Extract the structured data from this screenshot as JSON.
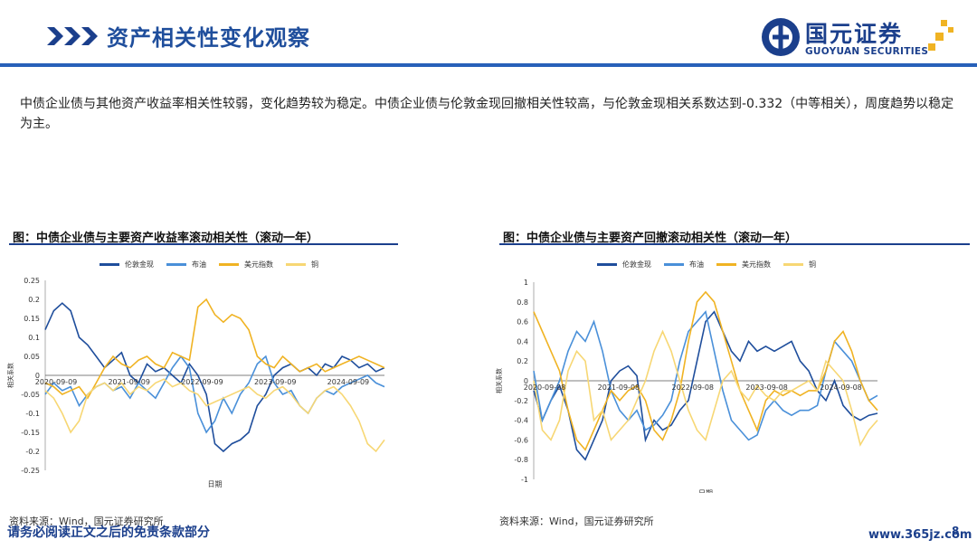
{
  "header": {
    "title": "资产相关性变化观察",
    "logo_cn": "国元证券",
    "logo_en": "GUOYUAN SECURITIES",
    "brand_color": "#1b3f8c"
  },
  "body_text": "中债企业债与其他资产收益率相关性较弱，变化趋势较为稳定。中债企业债与伦敦金现回撤相关性较高，与伦敦金现相关系数达到-0.332（中等相关），周度趋势以稳定为主。",
  "chart_data": [
    {
      "type": "line",
      "panel_title": "图：中债企业债与主要资产收益率滚动相关性（滚动一年）",
      "source": "资料来源：Wind，国元证券研究所",
      "xlabel": "日期",
      "ylabel": "相关系数",
      "ylim": [
        -0.25,
        0.25
      ],
      "yticks": [
        "0.25",
        "0.2",
        "0.15",
        "0.1",
        "0.05",
        "0",
        "-0.05",
        "-0.1",
        "-0.15",
        "-0.2",
        "-0.25"
      ],
      "xticks": [
        "2020-09-09",
        "2021-09-09",
        "2022-09-09",
        "2023-09-09",
        "2024-09-09"
      ],
      "series": [
        {
          "name": "伦敦金现",
          "color": "#1f4e9c",
          "values": [
            0.12,
            0.17,
            0.19,
            0.17,
            0.1,
            0.08,
            0.05,
            0.02,
            0.04,
            0.06,
            0.0,
            -0.02,
            0.03,
            0.01,
            0.02,
            0.0,
            -0.02,
            0.03,
            0.0,
            -0.05,
            -0.18,
            -0.2,
            -0.18,
            -0.17,
            -0.15,
            -0.08,
            -0.05,
            0.0,
            0.02,
            0.03,
            0.01,
            0.02,
            0.0,
            0.03,
            0.02,
            0.05,
            0.04,
            0.02,
            0.03,
            0.01,
            0.02
          ]
        },
        {
          "name": "布油",
          "color": "#4a90d9",
          "values": [
            -0.05,
            -0.02,
            -0.04,
            -0.03,
            -0.08,
            -0.05,
            -0.03,
            -0.02,
            -0.04,
            -0.03,
            -0.06,
            -0.02,
            -0.04,
            -0.06,
            -0.02,
            0.02,
            0.05,
            0.02,
            -0.1,
            -0.15,
            -0.12,
            -0.06,
            -0.1,
            -0.05,
            -0.02,
            0.03,
            0.05,
            -0.02,
            -0.05,
            -0.04,
            -0.08,
            -0.1,
            -0.06,
            -0.04,
            -0.05,
            -0.03,
            -0.02,
            -0.01,
            0.0,
            -0.02,
            -0.03
          ]
        },
        {
          "name": "美元指数",
          "color": "#f0b323",
          "values": [
            -0.02,
            -0.03,
            -0.05,
            -0.04,
            -0.03,
            -0.06,
            -0.02,
            0.02,
            0.05,
            0.03,
            0.02,
            0.04,
            0.05,
            0.03,
            0.02,
            0.06,
            0.05,
            0.04,
            0.18,
            0.2,
            0.16,
            0.14,
            0.16,
            0.15,
            0.12,
            0.05,
            0.03,
            0.02,
            0.05,
            0.03,
            0.01,
            0.02,
            0.03,
            0.01,
            0.02,
            0.03,
            0.04,
            0.05,
            0.04,
            0.03,
            0.02
          ]
        },
        {
          "name": "铜",
          "color": "#f7d774",
          "values": [
            -0.04,
            -0.06,
            -0.1,
            -0.15,
            -0.12,
            -0.05,
            -0.03,
            -0.02,
            -0.04,
            -0.02,
            -0.05,
            -0.03,
            -0.04,
            -0.02,
            -0.01,
            -0.03,
            -0.02,
            -0.04,
            -0.05,
            -0.08,
            -0.07,
            -0.06,
            -0.05,
            -0.04,
            -0.03,
            -0.05,
            -0.06,
            -0.04,
            -0.03,
            -0.05,
            -0.08,
            -0.1,
            -0.06,
            -0.04,
            -0.03,
            -0.05,
            -0.08,
            -0.12,
            -0.18,
            -0.2,
            -0.17
          ]
        }
      ]
    },
    {
      "type": "line",
      "panel_title": "图：中债企业债与主要资产回撤滚动相关性（滚动一年）",
      "source": "资料来源：Wind，国元证券研究所",
      "xlabel": "日期",
      "ylabel": "相关系数",
      "ylim": [
        -1,
        1
      ],
      "yticks": [
        "1",
        "0.8",
        "0.6",
        "0.4",
        "0.2",
        "0",
        "-0.2",
        "-0.4",
        "-0.6",
        "-0.8",
        "-1"
      ],
      "xticks": [
        "2020-09-08",
        "2021-09-08",
        "2022-09-08",
        "2023-09-08",
        "2024-09-08"
      ],
      "series": [
        {
          "name": "伦敦金现",
          "color": "#1f4e9c",
          "values": [
            -0.1,
            -0.4,
            -0.2,
            -0.05,
            -0.3,
            -0.7,
            -0.8,
            -0.6,
            -0.4,
            0.0,
            0.1,
            0.15,
            0.05,
            -0.6,
            -0.4,
            -0.5,
            -0.45,
            -0.3,
            -0.2,
            0.2,
            0.6,
            0.7,
            0.5,
            0.3,
            0.2,
            0.4,
            0.3,
            0.35,
            0.3,
            0.35,
            0.4,
            0.2,
            0.1,
            -0.1,
            -0.2,
            0.0,
            -0.25,
            -0.35,
            -0.4,
            -0.35,
            -0.33
          ]
        },
        {
          "name": "布油",
          "color": "#4a90d9",
          "values": [
            0.1,
            -0.4,
            -0.2,
            0.0,
            0.3,
            0.5,
            0.4,
            0.6,
            0.3,
            -0.1,
            -0.3,
            -0.4,
            -0.3,
            -0.5,
            -0.45,
            -0.35,
            -0.2,
            0.2,
            0.5,
            0.6,
            0.7,
            0.3,
            -0.1,
            -0.4,
            -0.5,
            -0.6,
            -0.55,
            -0.3,
            -0.2,
            -0.3,
            -0.35,
            -0.3,
            -0.3,
            -0.25,
            0.1,
            0.4,
            0.3,
            0.2,
            0.0,
            -0.2,
            -0.15
          ]
        },
        {
          "name": "美元指数",
          "color": "#f0b323",
          "values": [
            0.7,
            0.5,
            0.3,
            0.1,
            -0.3,
            -0.6,
            -0.7,
            -0.5,
            -0.3,
            -0.1,
            -0.2,
            -0.1,
            -0.05,
            -0.2,
            -0.5,
            -0.6,
            -0.4,
            -0.1,
            0.4,
            0.8,
            0.9,
            0.8,
            0.5,
            0.2,
            -0.1,
            -0.3,
            -0.5,
            -0.2,
            -0.1,
            -0.15,
            -0.1,
            -0.15,
            -0.1,
            -0.1,
            0.1,
            0.4,
            0.5,
            0.3,
            0.0,
            -0.2,
            -0.3
          ]
        },
        {
          "name": "铜",
          "color": "#f7d774",
          "values": [
            0.0,
            -0.5,
            -0.6,
            -0.4,
            0.1,
            0.3,
            0.2,
            -0.4,
            -0.3,
            -0.6,
            -0.5,
            -0.4,
            -0.2,
            0.0,
            0.3,
            0.5,
            0.3,
            0.0,
            -0.3,
            -0.5,
            -0.6,
            -0.3,
            0.0,
            0.1,
            -0.1,
            -0.2,
            -0.05,
            -0.15,
            -0.2,
            -0.1,
            -0.1,
            -0.05,
            0.0,
            -0.1,
            0.2,
            0.1,
            0.0,
            -0.3,
            -0.65,
            -0.5,
            -0.4
          ]
        }
      ]
    }
  ],
  "footer": {
    "disclaimer": "请务必阅读正文之后的免责条款部分",
    "watermark": "www.365jz.com",
    "page_number": "8"
  }
}
